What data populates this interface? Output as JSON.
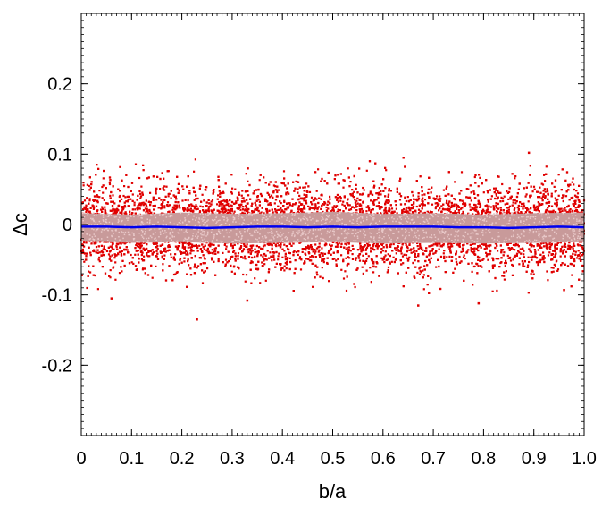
{
  "chart_data": {
    "type": "scatter",
    "title": "",
    "xlabel": "b/a",
    "ylabel": "Δc",
    "xlim": [
      0,
      1.0
    ],
    "ylim": [
      -0.3,
      0.3
    ],
    "x_ticks": [
      0,
      0.1,
      0.2,
      0.3,
      0.4,
      0.5,
      0.6,
      0.7,
      0.8,
      0.9,
      1.0
    ],
    "x_tick_labels": [
      "0",
      "0.1",
      "0.2",
      "0.3",
      "0.4",
      "0.5",
      "0.6",
      "0.7",
      "0.8",
      "0.9",
      "1.0"
    ],
    "y_ticks": [
      -0.2,
      -0.1,
      0,
      0.1,
      0.2
    ],
    "y_tick_labels": [
      "-0.2",
      "-0.1",
      "0",
      "0.1",
      "0.2"
    ],
    "grid": false,
    "legend": "none",
    "series": [
      {
        "kind": "scatter",
        "color": "#e00000",
        "description_note": "dense scatter of individual samples spread roughly between -0.12 and 0.10, uniform in b/a",
        "x_range": [
          0,
          1.0
        ],
        "y_sigma": 0.03,
        "outliers": [
          [
            0.23,
            -0.135
          ],
          [
            0.33,
            -0.108
          ],
          [
            0.67,
            -0.115
          ],
          [
            0.79,
            -0.112
          ],
          [
            0.89,
            0.102
          ],
          [
            0.06,
            -0.105
          ],
          [
            0.96,
            -0.093
          ]
        ]
      },
      {
        "kind": "band",
        "color": "#c89a9a",
        "x": [
          0,
          0.1,
          0.2,
          0.3,
          0.4,
          0.5,
          0.6,
          0.7,
          0.8,
          0.9,
          1.0
        ],
        "lower": [
          -0.024,
          -0.026,
          -0.025,
          -0.027,
          -0.026,
          -0.025,
          -0.027,
          -0.026,
          -0.027,
          -0.026,
          -0.025
        ],
        "upper": [
          0.016,
          0.014,
          0.017,
          0.015,
          0.016,
          0.018,
          0.015,
          0.016,
          0.014,
          0.016,
          0.017
        ]
      },
      {
        "kind": "line",
        "color": "#0000ee",
        "x": [
          0,
          0.05,
          0.1,
          0.15,
          0.2,
          0.25,
          0.3,
          0.35,
          0.4,
          0.45,
          0.5,
          0.55,
          0.6,
          0.65,
          0.7,
          0.75,
          0.8,
          0.85,
          0.9,
          0.95,
          1.0
        ],
        "y": [
          -0.003,
          -0.003,
          -0.004,
          -0.003,
          -0.004,
          -0.005,
          -0.004,
          -0.003,
          -0.003,
          -0.004,
          -0.003,
          -0.004,
          -0.003,
          -0.003,
          -0.003,
          -0.004,
          -0.004,
          -0.005,
          -0.004,
          -0.003,
          -0.004
        ]
      }
    ]
  }
}
